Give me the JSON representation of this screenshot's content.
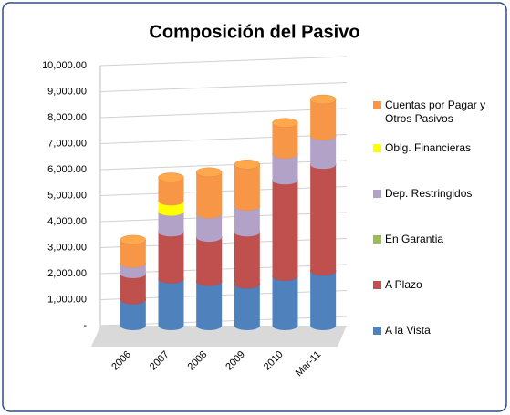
{
  "chart_data": {
    "type": "stacked-cylinder",
    "title": "Composición del Pasivo",
    "categories": [
      "2006",
      "2007",
      "2008",
      "2009",
      "2010",
      "Mar-11"
    ],
    "series": [
      {
        "name": "A la Vista",
        "color": "#4f81bd",
        "values": [
          1000,
          1800,
          1700,
          1600,
          1900,
          2100
        ]
      },
      {
        "name": "A Plazo",
        "color": "#c0504d",
        "values": [
          1000,
          1800,
          1700,
          2000,
          3700,
          4100
        ]
      },
      {
        "name": "En Garantia",
        "color": "#9bbb59",
        "values": [
          0,
          0,
          0,
          0,
          0,
          0
        ]
      },
      {
        "name": "Dep. Restringidos",
        "color": "#b3a2c7",
        "values": [
          400,
          800,
          900,
          1000,
          1000,
          1100
        ]
      },
      {
        "name": "Oblg. Financieras",
        "color": "#ffff00",
        "values": [
          0,
          400,
          0,
          0,
          0,
          0
        ]
      },
      {
        "name": "Cuentas por Pagar y Otros Pasivos",
        "color": "#f79646",
        "values": [
          900,
          900,
          1600,
          1600,
          1200,
          1400
        ]
      }
    ],
    "ylim": [
      0,
      10000
    ],
    "yticks": [
      {
        "value": 0,
        "label": "-"
      },
      {
        "value": 1000,
        "label": "1,000.00"
      },
      {
        "value": 2000,
        "label": "2,000.00"
      },
      {
        "value": 3000,
        "label": "3,000.00"
      },
      {
        "value": 4000,
        "label": "4,000.00"
      },
      {
        "value": 5000,
        "label": "5,000.00"
      },
      {
        "value": 6000,
        "label": "6,000.00"
      },
      {
        "value": 7000,
        "label": "7,000.00"
      },
      {
        "value": 8000,
        "label": "8,000.00"
      },
      {
        "value": 9000,
        "label": "9,000.00"
      },
      {
        "value": 10000,
        "label": "10,000.00"
      }
    ],
    "grid": true,
    "legend": "right"
  }
}
